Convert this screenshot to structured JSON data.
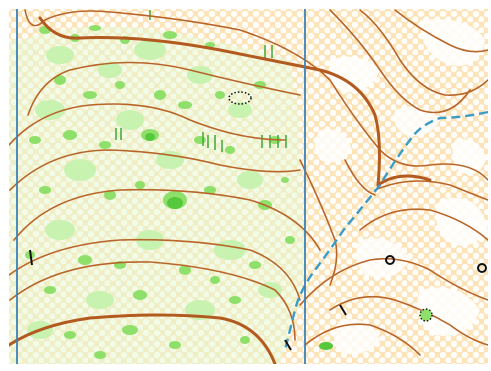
{
  "map": {
    "style": "orienteering-map",
    "colors": {
      "open_land": "#fde3b8",
      "open_dots": "#ffffff",
      "white_forest": "#ffffff",
      "green_light": "#c8f2b0",
      "green_medium": "#8ee06a",
      "green_dark": "#55c83c",
      "contour": "#b8652a",
      "index_contour": "#b35a20",
      "magnetic_north_line": "#3b82b8",
      "stream": "#3a9cc8",
      "point_feature": "#111111"
    },
    "symbols": [
      "contour-line",
      "index-contour",
      "magnetic-north-line",
      "stream",
      "small-knoll-ring",
      "green-vegetation-patch",
      "dotted-outline-feature"
    ]
  }
}
